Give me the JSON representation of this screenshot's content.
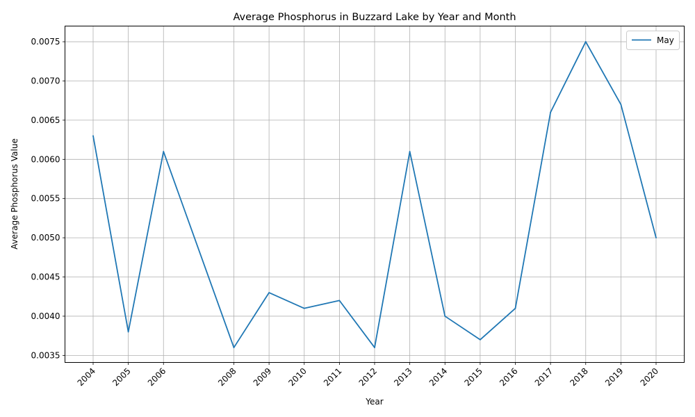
{
  "chart_data": {
    "type": "line",
    "title": "Average Phosphorus in Buzzard Lake by Year and Month",
    "xlabel": "Year",
    "ylabel": "Average Phosphorus Value",
    "x": [
      2004,
      2005,
      2006,
      2008,
      2009,
      2010,
      2011,
      2012,
      2013,
      2014,
      2015,
      2016,
      2017,
      2018,
      2019,
      2020
    ],
    "xticks": [
      "2004",
      "2005",
      "2006",
      "2008",
      "2009",
      "2010",
      "2011",
      "2012",
      "2013",
      "2014",
      "2015",
      "2016",
      "2017",
      "2018",
      "2019",
      "2020"
    ],
    "series": [
      {
        "name": "May",
        "color": "#1f77b4",
        "values": [
          0.0063,
          0.0038,
          0.0061,
          0.0036,
          0.0043,
          0.0041,
          0.0042,
          0.0036,
          0.0061,
          0.004,
          0.0037,
          0.0041,
          0.0066,
          0.0075,
          0.0067,
          0.005
        ]
      }
    ],
    "yticks": [
      "0.0035",
      "0.0040",
      "0.0045",
      "0.0050",
      "0.0055",
      "0.0060",
      "0.0065",
      "0.0070",
      "0.0075"
    ],
    "ylim": [
      0.00341,
      0.0077
    ],
    "xlim": [
      2003.2,
      2020.8
    ],
    "grid": true,
    "legend_position": "top-right"
  }
}
